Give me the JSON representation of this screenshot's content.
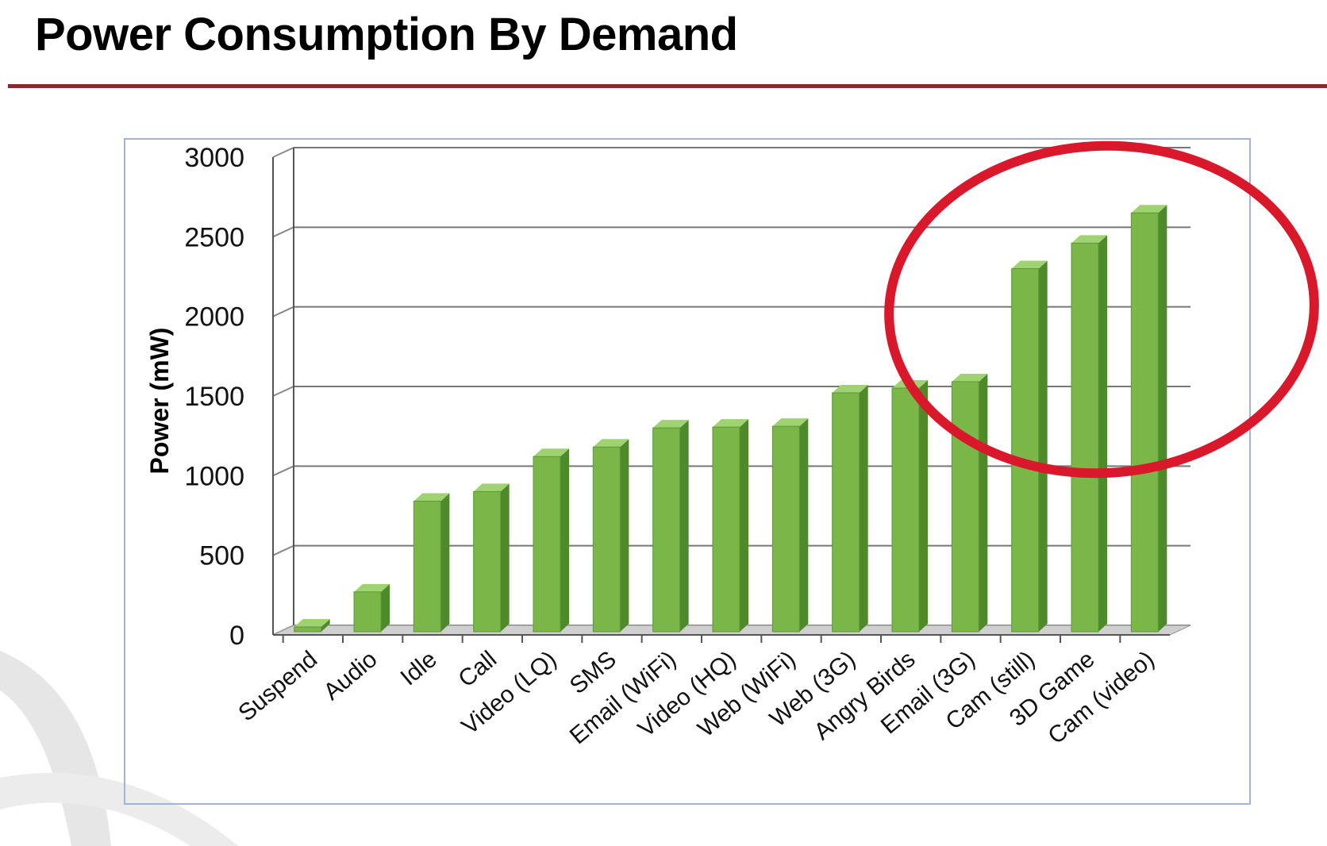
{
  "slide": {
    "title": "Power Consumption By Demand"
  },
  "colors": {
    "bar_front": "#7ab648",
    "bar_side": "#4e8a2a",
    "bar_top": "#9fd271",
    "highlight_ellipse": "#d9192b",
    "title_rule": "#8b2a2a"
  },
  "chart_data": {
    "type": "bar",
    "style": "3d-column",
    "ylabel": "Power (mW)",
    "xlabel": "",
    "ylim": [
      0,
      3000
    ],
    "yticks": [
      0,
      500,
      1000,
      1500,
      2000,
      2500,
      3000
    ],
    "grid": true,
    "categories": [
      "Suspend",
      "Audio",
      "Idle",
      "Call",
      "Video (LQ)",
      "SMS",
      "Email (WiFi)",
      "Video (HQ)",
      "Web (WiFi)",
      "Web (3G)",
      "Angry Birds",
      "Email (3G)",
      "Cam (still)",
      "3D Game",
      "Cam (video)"
    ],
    "values": [
      30,
      250,
      820,
      880,
      1100,
      1160,
      1280,
      1285,
      1290,
      1500,
      1530,
      1570,
      2280,
      2440,
      2630
    ],
    "annotation": {
      "type": "ellipse",
      "highlights": [
        "Email (3G)",
        "Cam (still)",
        "3D Game",
        "Cam (video)"
      ]
    }
  }
}
